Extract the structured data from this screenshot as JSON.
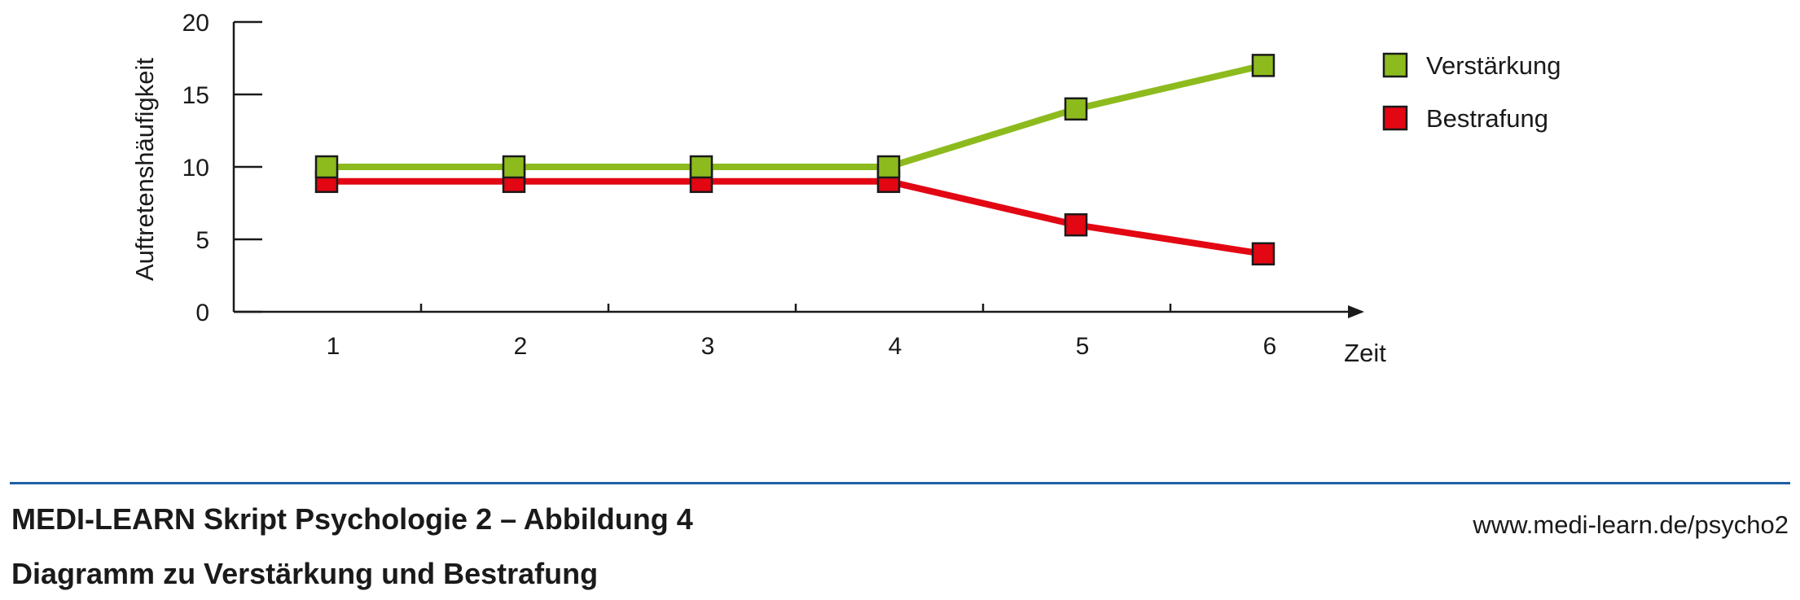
{
  "chart_data": {
    "type": "line",
    "x": [
      1,
      2,
      3,
      4,
      5,
      6
    ],
    "x_tick_labels": [
      "1",
      "2",
      "3",
      "4",
      "5",
      "6"
    ],
    "xlabel": "Zeit",
    "ylabel": "Auftretenshäufigkeit",
    "ylim": [
      0,
      20
    ],
    "y_ticks": [
      0,
      5,
      10,
      15,
      20
    ],
    "grid": false,
    "legend_position": "right",
    "series": [
      {
        "name": "Verstärkung",
        "color": "#8dbb1e",
        "values": [
          10,
          10,
          10,
          10,
          14,
          17
        ]
      },
      {
        "name": "Bestrafung",
        "color": "#e30613",
        "values": [
          9,
          9,
          9,
          9,
          6,
          4
        ]
      }
    ]
  },
  "colors": {
    "rule": "#1f5fa6",
    "axis": "#1a1a1a"
  },
  "caption": {
    "title": "MEDI-LEARN Skript Psychologie 2 – Abbildung 4",
    "subtitle": "Diagramm zu Verstärkung und Bestrafung",
    "url": "www.medi-learn.de/psycho2"
  }
}
